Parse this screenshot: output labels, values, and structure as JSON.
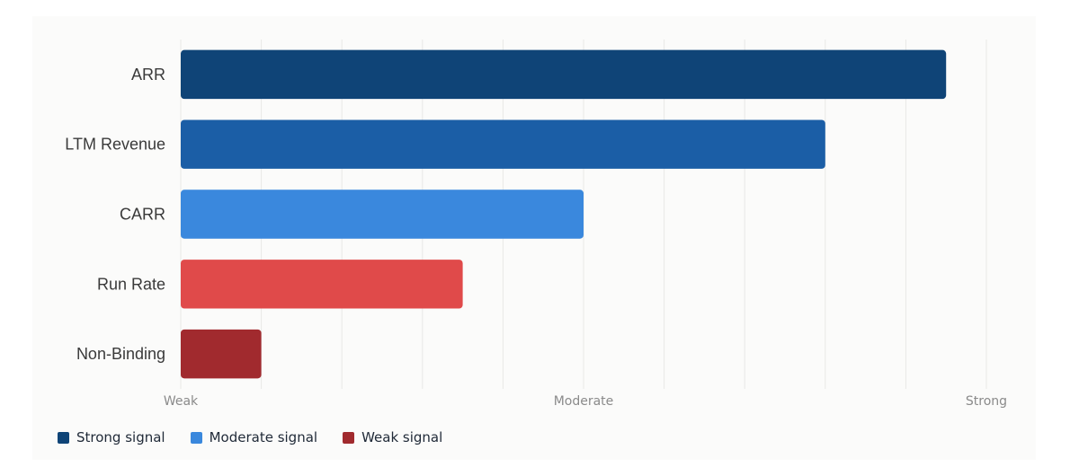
{
  "chart_data": {
    "type": "bar",
    "orientation": "horizontal",
    "categories": [
      "ARR",
      "LTM Revenue",
      "CARR",
      "Run Rate",
      "Non-Binding"
    ],
    "values": [
      95,
      80,
      50,
      35,
      10
    ],
    "colors": [
      "#0f4477",
      "#1b5ea6",
      "#3a88dd",
      "#e04a4a",
      "#a12a2e"
    ],
    "xlim": [
      0,
      100
    ],
    "x_tick_values": [
      0,
      50,
      100
    ],
    "x_tick_labels": [
      "Weak",
      "Moderate",
      "Strong"
    ],
    "grid": true,
    "legend_position": "bottom-left",
    "title": "",
    "xlabel": "",
    "ylabel": ""
  },
  "legend": [
    {
      "label": "Strong signal",
      "color": "#0f4477"
    },
    {
      "label": "Moderate signal",
      "color": "#3a88dd"
    },
    {
      "label": "Weak signal",
      "color": "#a12a2e"
    }
  ]
}
